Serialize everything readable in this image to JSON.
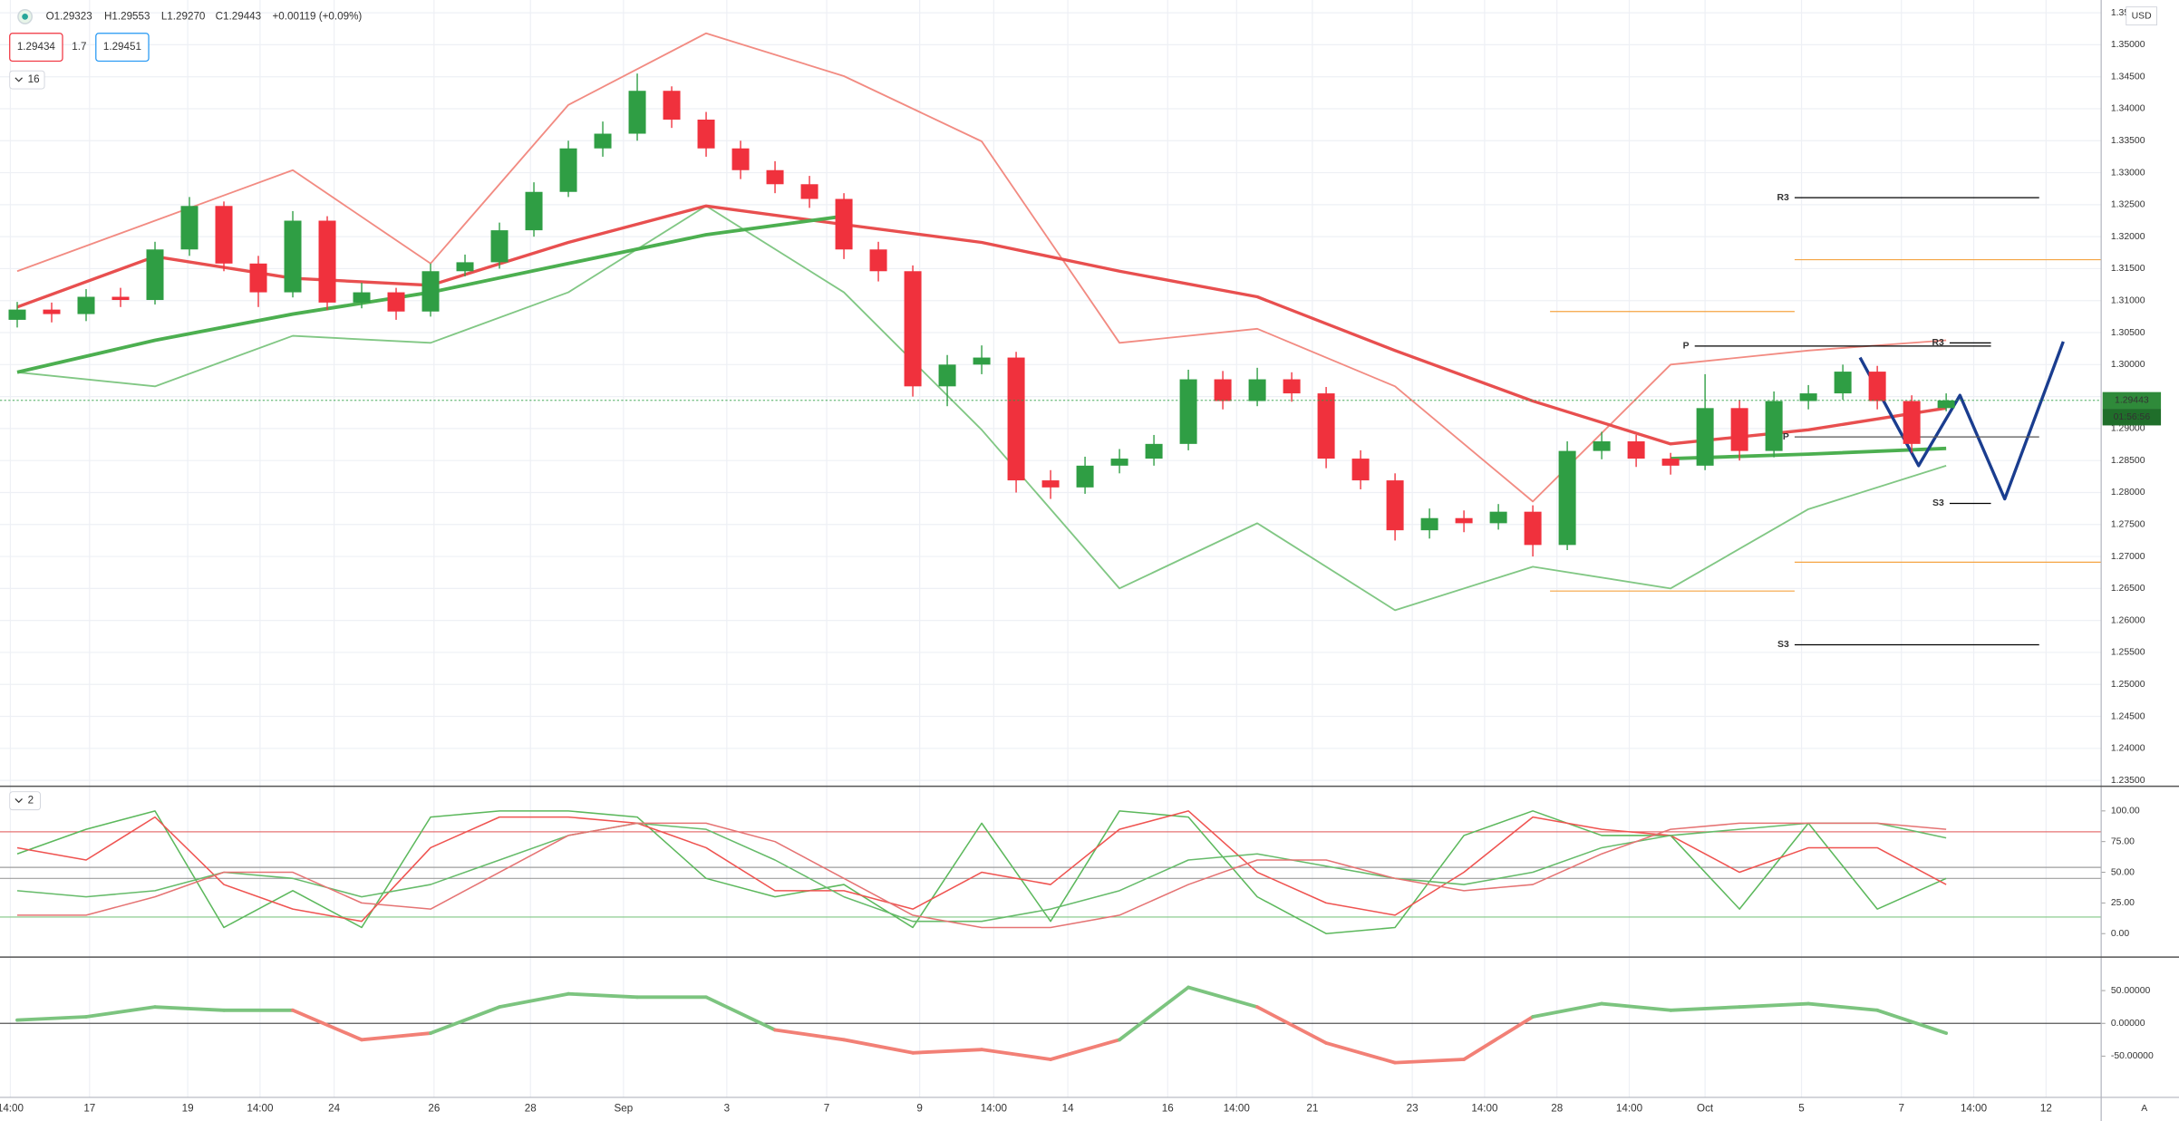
{
  "chart_data": [
    {
      "type": "candlestick",
      "ohlc": [
        "O1.29323",
        "H1.29553",
        "L1.29270",
        "C1.29443",
        "+0.00119 (+0.09%)"
      ],
      "bid": "1.29434",
      "spread": "1.7",
      "ask": "1.29451",
      "badge": "16",
      "currency": "USD",
      "last_price_label": "1.29443",
      "countdown": "01:56:56",
      "auto_label": "A",
      "up_color": "#2f9e44",
      "down_color": "#f0313d",
      "grid": true,
      "xlim": [
        -0.5,
        60.5
      ],
      "xticks": [
        {
          "value": -0.2,
          "label": "14:00"
        },
        {
          "value": 2.1,
          "label": "17"
        },
        {
          "value": 4.95,
          "label": "19"
        },
        {
          "value": 7.05,
          "label": "14:00"
        },
        {
          "value": 9.2,
          "label": "24"
        },
        {
          "value": 12.1,
          "label": "26"
        },
        {
          "value": 14.9,
          "label": "28"
        },
        {
          "value": 17.6,
          "label": "Sep"
        },
        {
          "value": 20.6,
          "label": "3"
        },
        {
          "value": 23.5,
          "label": "7"
        },
        {
          "value": 26.2,
          "label": "9"
        },
        {
          "value": 28.35,
          "label": "14:00"
        },
        {
          "value": 30.5,
          "label": "14"
        },
        {
          "value": 33.4,
          "label": "16"
        },
        {
          "value": 35.4,
          "label": "14:00"
        },
        {
          "value": 37.6,
          "label": "21"
        },
        {
          "value": 40.5,
          "label": "23"
        },
        {
          "value": 42.6,
          "label": "14:00"
        },
        {
          "value": 44.7,
          "label": "28"
        },
        {
          "value": 46.8,
          "label": "14:00"
        },
        {
          "value": 49.0,
          "label": "Oct"
        },
        {
          "value": 51.8,
          "label": "5"
        },
        {
          "value": 54.7,
          "label": "7"
        },
        {
          "value": 56.8,
          "label": "14:00"
        },
        {
          "value": 58.9,
          "label": "12"
        }
      ],
      "ylim": [
        1.2343,
        1.357
      ],
      "yticks": [
        {
          "value": 1.235,
          "label": "1.23500"
        },
        {
          "value": 1.24,
          "label": "1.24000"
        },
        {
          "value": 1.245,
          "label": "1.24500"
        },
        {
          "value": 1.25,
          "label": "1.25000"
        },
        {
          "value": 1.255,
          "label": "1.25500"
        },
        {
          "value": 1.26,
          "label": "1.26000"
        },
        {
          "value": 1.265,
          "label": "1.26500"
        },
        {
          "value": 1.27,
          "label": "1.27000"
        },
        {
          "value": 1.275,
          "label": "1.27500"
        },
        {
          "value": 1.28,
          "label": "1.28000"
        },
        {
          "value": 1.285,
          "label": "1.28500"
        },
        {
          "value": 1.29,
          "label": "1.29000"
        },
        {
          "value": 1.295,
          "label": "1.29500"
        },
        {
          "value": 1.3,
          "label": "1.30000"
        },
        {
          "value": 1.305,
          "label": "1.30500"
        },
        {
          "value": 1.31,
          "label": "1.31000"
        },
        {
          "value": 1.315,
          "label": "1.31500"
        },
        {
          "value": 1.32,
          "label": "1.32000"
        },
        {
          "value": 1.325,
          "label": "1.32500"
        },
        {
          "value": 1.33,
          "label": "1.33000"
        },
        {
          "value": 1.335,
          "label": "1.33500"
        },
        {
          "value": 1.34,
          "label": "1.34000"
        },
        {
          "value": 1.345,
          "label": "1.34500"
        },
        {
          "value": 1.35,
          "label": "1.35000"
        },
        {
          "value": 1.355,
          "label": "1.35500"
        }
      ],
      "open": [
        1.307,
        1.3086,
        1.3079,
        1.3106,
        1.3101,
        1.318,
        1.3248,
        1.3158,
        1.3113,
        1.3225,
        1.3097,
        1.3113,
        1.3083,
        1.3146,
        1.316,
        1.321,
        1.327,
        1.3338,
        1.3361,
        1.3428,
        1.3383,
        1.3338,
        1.3304,
        1.3282,
        1.3259,
        1.318,
        1.3146,
        1.2966,
        1.3,
        1.3011,
        1.2819,
        1.2808,
        1.2842,
        1.2853,
        1.2876,
        1.2977,
        1.2943,
        1.2977,
        1.2955,
        1.2853,
        1.2819,
        1.2741,
        1.276,
        1.2752,
        1.277,
        1.2718,
        1.2865,
        1.288,
        1.2853,
        1.2842,
        1.2932,
        1.2865,
        1.2943,
        1.2955,
        1.2989,
        1.2943,
        1.2932
      ],
      "high": [
        1.3098,
        1.3097,
        1.3118,
        1.312,
        1.3192,
        1.3262,
        1.3255,
        1.317,
        1.324,
        1.3232,
        1.3128,
        1.312,
        1.3158,
        1.3172,
        1.3222,
        1.3285,
        1.335,
        1.338,
        1.3455,
        1.3435,
        1.3395,
        1.335,
        1.3318,
        1.3295,
        1.3268,
        1.3192,
        1.3155,
        1.3015,
        1.303,
        1.302,
        1.2835,
        1.2856,
        1.2868,
        1.289,
        1.2992,
        1.299,
        1.2995,
        1.2988,
        1.2965,
        1.2866,
        1.283,
        1.2775,
        1.2772,
        1.2782,
        1.278,
        1.288,
        1.2895,
        1.289,
        1.2862,
        1.2985,
        1.2945,
        1.2958,
        1.2968,
        1.3,
        1.2998,
        1.2952,
        1.2955
      ],
      "low": [
        1.3058,
        1.3066,
        1.3068,
        1.309,
        1.3094,
        1.317,
        1.3146,
        1.309,
        1.3105,
        1.3085,
        1.3088,
        1.307,
        1.3075,
        1.3138,
        1.315,
        1.32,
        1.3262,
        1.3325,
        1.335,
        1.337,
        1.3325,
        1.329,
        1.3268,
        1.3245,
        1.3165,
        1.313,
        1.295,
        1.2935,
        1.2985,
        1.28,
        1.279,
        1.2798,
        1.283,
        1.2842,
        1.2866,
        1.293,
        1.2935,
        1.2942,
        1.2838,
        1.2805,
        1.2725,
        1.2728,
        1.2738,
        1.2742,
        1.27,
        1.271,
        1.2852,
        1.284,
        1.2828,
        1.2835,
        1.285,
        1.2855,
        1.293,
        1.2945,
        1.293,
        1.2862,
        1.2927
      ],
      "close": [
        1.3086,
        1.3079,
        1.3106,
        1.3101,
        1.318,
        1.3248,
        1.3158,
        1.3113,
        1.3225,
        1.3097,
        1.3113,
        1.3083,
        1.3146,
        1.316,
        1.321,
        1.327,
        1.3338,
        1.3361,
        1.3428,
        1.3383,
        1.3338,
        1.3304,
        1.3282,
        1.3259,
        1.318,
        1.3146,
        1.2966,
        1.3,
        1.3011,
        1.2819,
        1.2808,
        1.2842,
        1.2853,
        1.2876,
        1.2977,
        1.2943,
        1.2977,
        1.2955,
        1.2853,
        1.2819,
        1.2741,
        1.276,
        1.2752,
        1.277,
        1.2718,
        1.2865,
        1.288,
        1.2853,
        1.2842,
        1.2932,
        1.2865,
        1.2943,
        1.2955,
        1.2989,
        1.2943,
        1.2876,
        1.2944
      ],
      "series": [
        {
          "color": "#f28b82",
          "width": 1.2,
          "x": [
            0,
            4,
            8,
            12,
            16,
            20,
            24,
            28,
            32,
            36,
            40,
            44,
            48,
            52,
            56
          ],
          "values": [
            1.3146,
            1.3225,
            1.3304,
            1.3158,
            1.3406,
            1.3518,
            1.3451,
            1.3349,
            1.3034,
            1.3056,
            1.2966,
            1.2786,
            1.3,
            1.3022,
            1.3038
          ]
        },
        {
          "color": "#81c784",
          "width": 1.2,
          "x": [
            0,
            4,
            8,
            12,
            16,
            20,
            24,
            28,
            32,
            36,
            40,
            44,
            48,
            52,
            56
          ],
          "values": [
            1.2988,
            1.2966,
            1.3045,
            1.3034,
            1.3113,
            1.3248,
            1.3113,
            1.2898,
            1.265,
            1.2752,
            1.2616,
            1.2684,
            1.265,
            1.2774,
            1.2842
          ]
        },
        {
          "color": "#e84f4f",
          "width": 2.2,
          "x": [
            0,
            4,
            8,
            12,
            16,
            20,
            24,
            28,
            32,
            36,
            40,
            44,
            48,
            52,
            56
          ],
          "values": [
            1.309,
            1.3169,
            1.3135,
            1.3124,
            1.3191,
            1.3248,
            1.3219,
            1.3191,
            1.3146,
            1.3106,
            1.3022,
            1.2943,
            1.2876,
            1.2898,
            1.2932
          ]
        },
        {
          "color": "#4caf50",
          "width": 2.5,
          "x": [
            0,
            4,
            8,
            12,
            16,
            20,
            24,
            28,
            32,
            36,
            40,
            44,
            48,
            52,
            56
          ],
          "values": [
            1.2988,
            1.3038,
            1.3079,
            1.3113,
            1.3158,
            1.3203,
            1.3232,
            null,
            null,
            null,
            null,
            null,
            1.2853,
            1.286,
            1.2869
          ]
        },
        {
          "color": "#1a3d8f",
          "width": 2.2,
          "x": [
            53.5,
            55.2,
            56.4,
            57.7,
            59.4
          ],
          "values": [
            1.3011,
            1.2842,
            1.2952,
            1.279,
            1.3036
          ]
        }
      ],
      "levels": [
        {
          "label": "R3",
          "value": 1.3261,
          "x": [
            51.6,
            58.7
          ],
          "color": "#000000"
        },
        {
          "label": "P",
          "value": 1.3029,
          "x": [
            48.7,
            57.3
          ],
          "color": "#000000"
        },
        {
          "label": "S3",
          "value": 1.2562,
          "x": [
            51.6,
            58.7
          ],
          "color": "#000000"
        },
        {
          "label": "R3",
          "value": 1.3034,
          "x": [
            56.1,
            57.3
          ],
          "color": "#000000"
        },
        {
          "label": "P",
          "value": 1.2887,
          "x": [
            51.6,
            58.7
          ],
          "color": "#555555"
        },
        {
          "label": "S3",
          "value": 1.2783,
          "x": [
            56.1,
            57.3
          ],
          "color": "#000000"
        },
        {
          "value": 1.3083,
          "x": [
            44.5,
            51.6
          ],
          "color": "#f5a442"
        },
        {
          "value": 1.2646,
          "x": [
            44.5,
            51.6
          ],
          "color": "#f5a442"
        },
        {
          "value": 1.3164,
          "x": [
            51.6,
            60.5
          ],
          "color": "#f5a442"
        },
        {
          "value": 1.2691,
          "x": [
            51.6,
            60.5
          ],
          "color": "#f5a442"
        }
      ]
    },
    {
      "type": "line",
      "badge": "2",
      "ylim": [
        -18,
        119
      ],
      "yticks": [
        {
          "value": 0,
          "label": "0.00"
        },
        {
          "value": 25,
          "label": "25.00"
        },
        {
          "value": 50,
          "label": "50.00"
        },
        {
          "value": 75,
          "label": "75.00"
        },
        {
          "value": 100,
          "label": "100.00"
        }
      ],
      "hlines": [
        {
          "value": 83,
          "color": "#e57373"
        },
        {
          "value": 54,
          "color": "#9e9e9e"
        },
        {
          "value": 45,
          "color": "#9e9e9e"
        },
        {
          "value": 13.5,
          "color": "#81c784"
        }
      ],
      "series": [
        {
          "color": "#5cb85c",
          "width": 1,
          "x": [
            0,
            2,
            4,
            6,
            8,
            10,
            12,
            14,
            16,
            18,
            20,
            22,
            24,
            26,
            28,
            30,
            32,
            34,
            36,
            38,
            40,
            42,
            44,
            46,
            48,
            50,
            52,
            54,
            56
          ],
          "values": [
            65,
            85,
            100,
            5,
            35,
            5,
            95,
            100,
            100,
            95,
            45,
            30,
            40,
            5,
            90,
            10,
            100,
            95,
            30,
            0,
            5,
            80,
            100,
            80,
            80,
            20,
            90,
            20,
            45
          ]
        },
        {
          "color": "#ef5350",
          "width": 1,
          "x": [
            0,
            2,
            4,
            6,
            8,
            10,
            12,
            14,
            16,
            18,
            20,
            22,
            24,
            26,
            28,
            30,
            32,
            34,
            36,
            38,
            40,
            42,
            44,
            46,
            48,
            50,
            52,
            54,
            56
          ],
          "values": [
            70,
            60,
            95,
            40,
            20,
            10,
            70,
            95,
            95,
            90,
            70,
            35,
            35,
            20,
            50,
            40,
            85,
            100,
            50,
            25,
            15,
            50,
            95,
            85,
            80,
            50,
            70,
            70,
            40
          ]
        },
        {
          "color": "#66bb6a",
          "width": 1,
          "x": [
            0,
            2,
            4,
            6,
            8,
            10,
            12,
            14,
            16,
            18,
            20,
            22,
            24,
            26,
            28,
            30,
            32,
            34,
            36,
            38,
            40,
            42,
            44,
            46,
            48,
            50,
            52,
            54,
            56
          ],
          "values": [
            35,
            30,
            35,
            50,
            45,
            30,
            40,
            60,
            80,
            90,
            85,
            60,
            30,
            10,
            10,
            20,
            35,
            60,
            65,
            55,
            45,
            40,
            50,
            70,
            80,
            85,
            90,
            90,
            78
          ]
        },
        {
          "color": "#e57373",
          "width": 1,
          "x": [
            0,
            2,
            4,
            6,
            8,
            10,
            12,
            14,
            16,
            18,
            20,
            22,
            24,
            26,
            28,
            30,
            32,
            34,
            36,
            38,
            40,
            42,
            44,
            46,
            48,
            50,
            52,
            54,
            56
          ],
          "values": [
            15,
            15,
            30,
            50,
            50,
            25,
            20,
            50,
            80,
            90,
            90,
            75,
            45,
            15,
            5,
            5,
            15,
            40,
            60,
            60,
            45,
            35,
            40,
            65,
            85,
            90,
            90,
            90,
            85
          ]
        }
      ]
    },
    {
      "type": "signed_line",
      "ylim": [
        -113,
        99
      ],
      "yticks": [
        {
          "value": -50,
          "label": "-50.00000"
        },
        {
          "value": 0,
          "label": "0.00000"
        },
        {
          "value": 50,
          "label": "50.00000"
        }
      ],
      "hlines": [
        {
          "value": 0,
          "color": "#555555"
        }
      ],
      "series": [
        {
          "pos_color": "#7cc47f",
          "neg_color": "#f28076",
          "width": 2.5,
          "x": [
            0,
            2,
            4,
            6,
            8,
            10,
            12,
            14,
            16,
            18,
            20,
            22,
            24,
            26,
            28,
            30,
            32,
            34,
            36,
            38,
            40,
            42,
            44,
            46,
            48,
            50,
            52,
            54,
            56
          ],
          "values": [
            5,
            10,
            25,
            20,
            20,
            -25,
            -15,
            25,
            45,
            40,
            40,
            -10,
            -25,
            -45,
            -40,
            -55,
            -25,
            55,
            25,
            -30,
            -60,
            -55,
            10,
            30,
            20,
            25,
            30,
            20,
            -15
          ]
        }
      ]
    }
  ]
}
